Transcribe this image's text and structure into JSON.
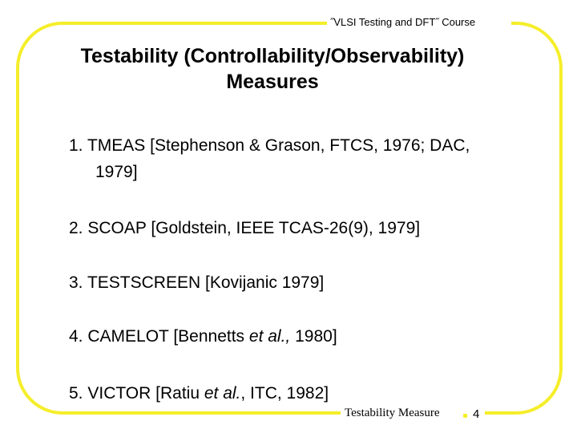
{
  "header": {
    "course_title": "˝VLSI Testing and DFT˝ Course"
  },
  "slide": {
    "title_line1": "Testability (Controllability/Observability)",
    "title_line2": "Measures"
  },
  "items": [
    {
      "line1": "1. TMEAS [Stephenson & Grason, FTCS, 1976; DAC,",
      "line2": "1979]"
    },
    {
      "text": "2. SCOAP [Goldstein, IEEE TCAS-26(9), 1979]"
    },
    {
      "text": "3. TESTSCREEN [Kovijanic 1979]"
    },
    {
      "pre": "4. CAMELOT [Bennetts ",
      "em": "et al.,",
      "post": " 1980]"
    },
    {
      "pre": "5. VICTOR [Ratiu ",
      "em": "et al.",
      "post": ", ITC, 1982]"
    }
  ],
  "footer": {
    "label": "Testability Measure",
    "page_number": "4"
  },
  "colors": {
    "frame": "#f5ee2a"
  }
}
